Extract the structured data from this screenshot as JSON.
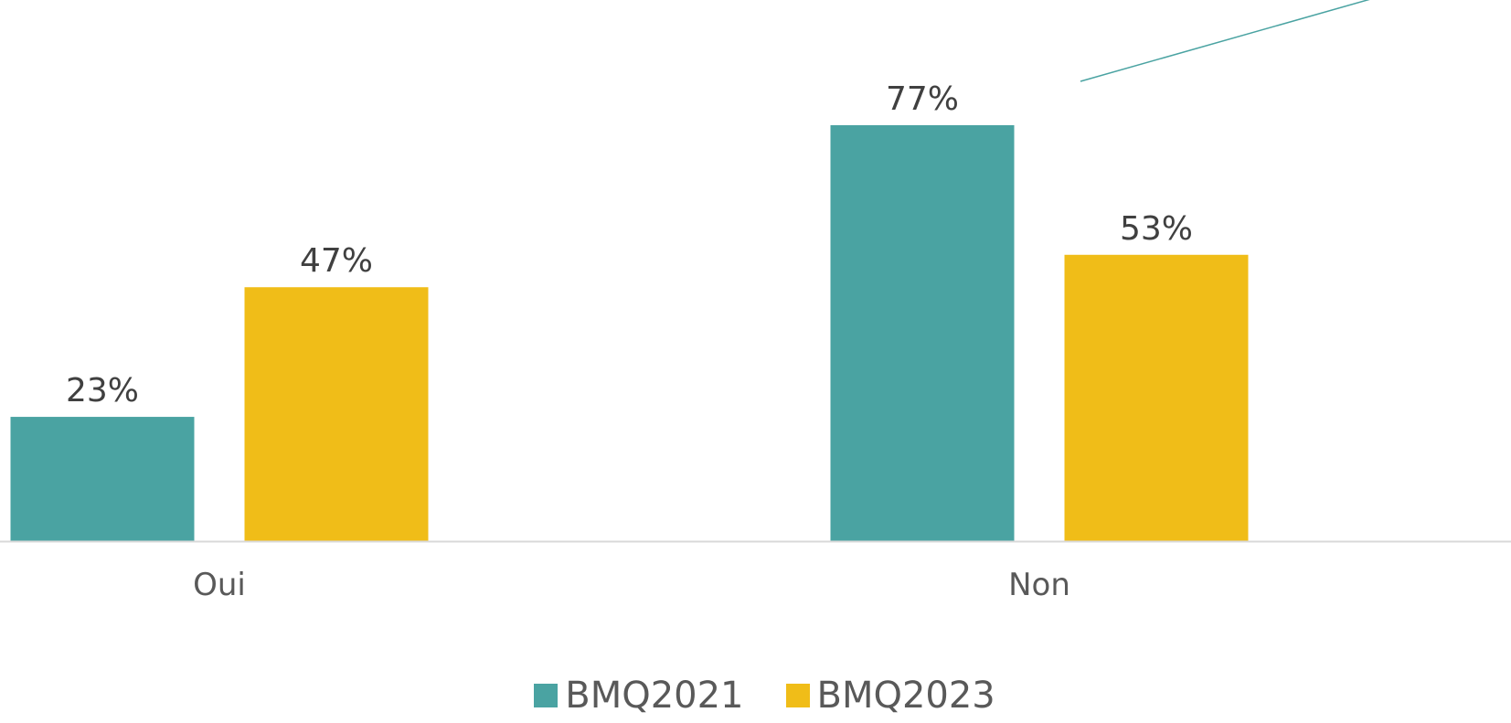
{
  "chart_data": {
    "type": "bar",
    "categories": [
      "Oui",
      "Non"
    ],
    "series": [
      {
        "name": "BMQ2021",
        "values": [
          23,
          77
        ],
        "color": "#4aa3a2"
      },
      {
        "name": "BMQ2023",
        "values": [
          47,
          53
        ],
        "color": "#f0bd18"
      }
    ],
    "value_labels": [
      [
        "23%",
        "77%"
      ],
      [
        "47%",
        "53%"
      ]
    ],
    "ylim": [
      0,
      100
    ],
    "grid": false,
    "legend_position": "bottom",
    "axis_color": "#d9d9d9",
    "annotation_color": "#4aa3a2"
  }
}
